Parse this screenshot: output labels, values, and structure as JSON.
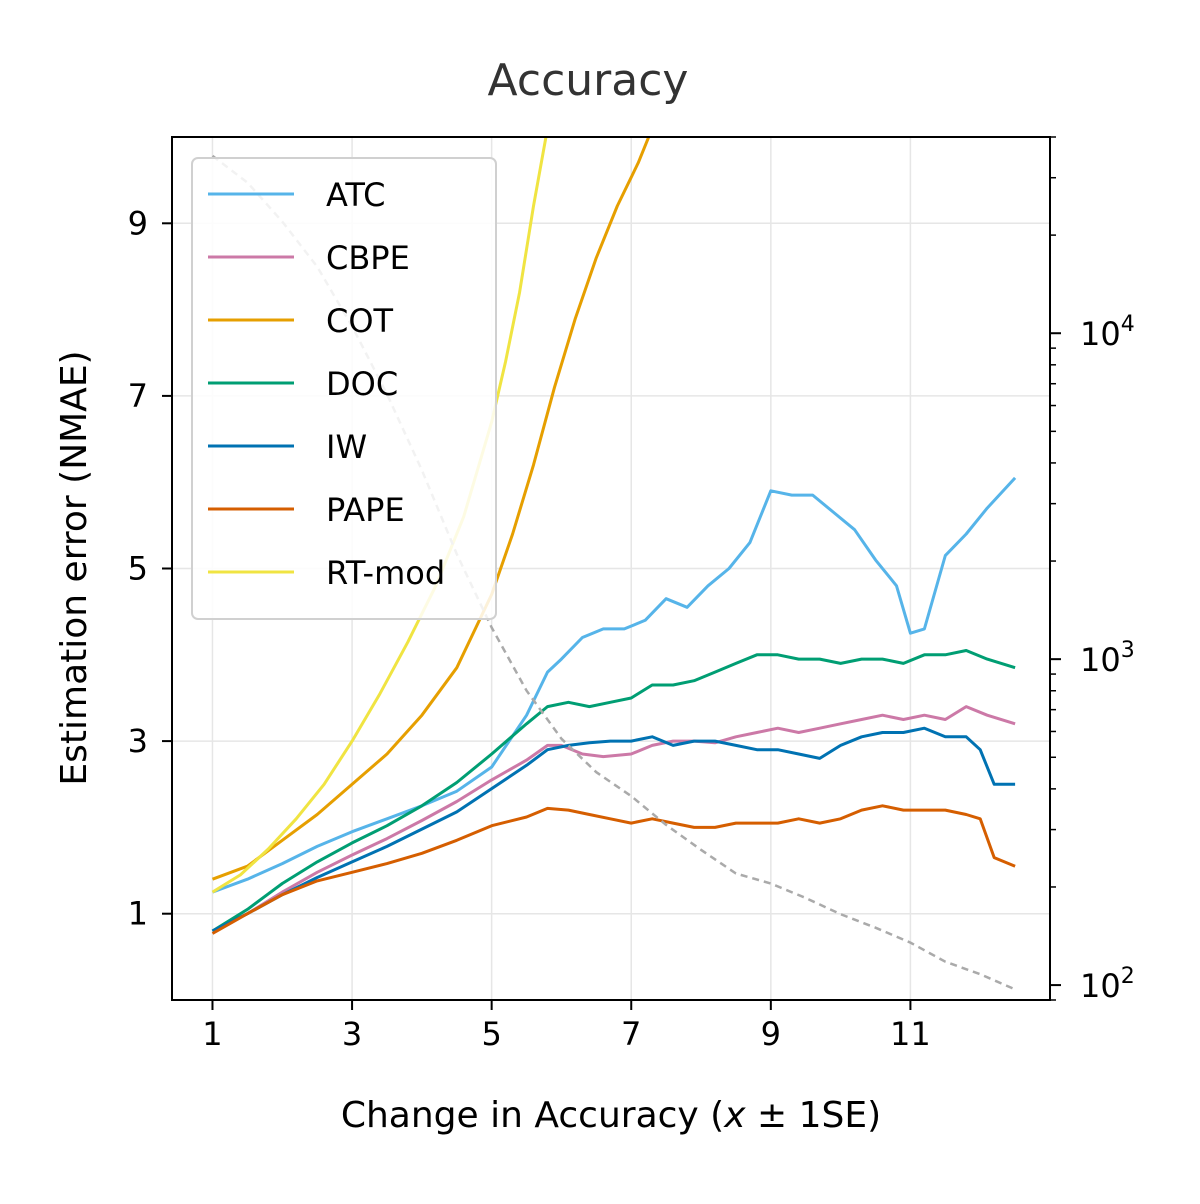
{
  "chart_data": {
    "type": "line",
    "title": "Accuracy",
    "xlabel_main": "Change in Accuracy (",
    "xlabel_math": "x",
    "xlabel_tail": " ± 1SE)",
    "ylabel": "Estimation error (NMAE)",
    "xlim": [
      0.42,
      13.0
    ],
    "ylim": [
      0.0,
      10.0
    ],
    "y2lim": [
      90,
      40000
    ],
    "y2scale": "log",
    "xticks": [
      1,
      3,
      5,
      7,
      9,
      11
    ],
    "xtick_labels": [
      "1",
      "3",
      "5",
      "7",
      "9",
      "11"
    ],
    "yticks": [
      1,
      3,
      5,
      7,
      9
    ],
    "ytick_labels": [
      "1",
      "3",
      "5",
      "7",
      "9"
    ],
    "y2ticks": [
      100,
      1000,
      10000
    ],
    "y2tick_labels": [
      {
        "base": "10",
        "exp": "2"
      },
      {
        "base": "10",
        "exp": "3"
      },
      {
        "base": "10",
        "exp": "4"
      }
    ],
    "grid": true,
    "legend_position": "upper-left",
    "series": [
      {
        "name": "ATC",
        "color": "#56b4e9",
        "x": [
          1,
          1.5,
          2,
          2.5,
          3,
          3.5,
          4,
          4.5,
          5,
          5.5,
          5.8,
          6,
          6.3,
          6.6,
          6.9,
          7.2,
          7.5,
          7.8,
          8.1,
          8.4,
          8.7,
          9,
          9.3,
          9.6,
          9.9,
          10.2,
          10.5,
          10.8,
          11,
          11.2,
          11.5,
          11.8,
          12.1,
          12.5
        ],
        "y": [
          1.25,
          1.4,
          1.58,
          1.78,
          1.95,
          2.1,
          2.25,
          2.42,
          2.7,
          3.3,
          3.8,
          3.95,
          4.2,
          4.3,
          4.3,
          4.4,
          4.65,
          4.55,
          4.8,
          5.0,
          5.3,
          5.9,
          5.85,
          5.85,
          5.65,
          5.45,
          5.1,
          4.8,
          4.25,
          4.3,
          5.15,
          5.4,
          5.7,
          6.05
        ]
      },
      {
        "name": "CBPE",
        "color": "#cc79a7",
        "x": [
          1,
          1.5,
          2,
          2.5,
          3,
          3.5,
          4,
          4.5,
          5,
          5.5,
          5.8,
          6,
          6.3,
          6.6,
          7,
          7.3,
          7.6,
          7.9,
          8.2,
          8.5,
          8.8,
          9.1,
          9.4,
          9.7,
          10,
          10.3,
          10.6,
          10.9,
          11.2,
          11.5,
          11.8,
          12.1,
          12.5
        ],
        "y": [
          0.8,
          1.0,
          1.25,
          1.48,
          1.68,
          1.87,
          2.08,
          2.3,
          2.55,
          2.78,
          2.95,
          2.95,
          2.85,
          2.82,
          2.85,
          2.95,
          3.0,
          3.0,
          2.98,
          3.05,
          3.1,
          3.15,
          3.1,
          3.15,
          3.2,
          3.25,
          3.3,
          3.25,
          3.3,
          3.25,
          3.4,
          3.3,
          3.2
        ]
      },
      {
        "name": "COT",
        "color": "#e69f00",
        "x": [
          1,
          1.5,
          2,
          2.5,
          3,
          3.5,
          4,
          4.5,
          5,
          5.3,
          5.6,
          5.9,
          6.2,
          6.5,
          6.8,
          7.1,
          7.4
        ],
        "y": [
          1.4,
          1.55,
          1.85,
          2.15,
          2.5,
          2.85,
          3.3,
          3.85,
          4.7,
          5.4,
          6.2,
          7.1,
          7.9,
          8.6,
          9.2,
          9.7,
          10.3
        ]
      },
      {
        "name": "DOC",
        "color": "#009e73",
        "x": [
          1,
          1.5,
          2,
          2.5,
          3,
          3.5,
          4,
          4.5,
          5,
          5.5,
          5.8,
          6.1,
          6.4,
          6.7,
          7,
          7.3,
          7.6,
          7.9,
          8.2,
          8.5,
          8.8,
          9.1,
          9.4,
          9.7,
          10,
          10.3,
          10.6,
          10.9,
          11.2,
          11.5,
          11.8,
          12.1,
          12.5
        ],
        "y": [
          0.8,
          1.05,
          1.35,
          1.6,
          1.82,
          2.02,
          2.25,
          2.52,
          2.85,
          3.2,
          3.4,
          3.45,
          3.4,
          3.45,
          3.5,
          3.65,
          3.65,
          3.7,
          3.8,
          3.9,
          4.0,
          4.0,
          3.95,
          3.95,
          3.9,
          3.95,
          3.95,
          3.9,
          4.0,
          4.0,
          4.05,
          3.95,
          3.85
        ]
      },
      {
        "name": "IW",
        "color": "#0072b2",
        "x": [
          1,
          1.5,
          2,
          2.5,
          3,
          3.5,
          4,
          4.5,
          5,
          5.5,
          5.8,
          6.1,
          6.4,
          6.7,
          7,
          7.3,
          7.6,
          7.9,
          8.2,
          8.5,
          8.8,
          9.1,
          9.4,
          9.7,
          10,
          10.3,
          10.6,
          10.9,
          11.2,
          11.5,
          11.8,
          12,
          12.2,
          12.5
        ],
        "y": [
          0.8,
          1.0,
          1.22,
          1.42,
          1.6,
          1.78,
          1.98,
          2.18,
          2.45,
          2.72,
          2.9,
          2.95,
          2.98,
          3.0,
          3.0,
          3.05,
          2.95,
          3.0,
          3.0,
          2.95,
          2.9,
          2.9,
          2.85,
          2.8,
          2.95,
          3.05,
          3.1,
          3.1,
          3.15,
          3.05,
          3.05,
          2.9,
          2.5,
          2.5
        ]
      },
      {
        "name": "PAPE",
        "color": "#d55e00",
        "x": [
          1,
          1.5,
          2,
          2.5,
          3,
          3.5,
          4,
          4.5,
          5,
          5.5,
          5.8,
          6.1,
          6.4,
          6.7,
          7,
          7.3,
          7.6,
          7.9,
          8.2,
          8.5,
          8.8,
          9.1,
          9.4,
          9.7,
          10,
          10.3,
          10.6,
          10.9,
          11.2,
          11.5,
          11.8,
          12,
          12.2,
          12.5
        ],
        "y": [
          0.77,
          1.0,
          1.22,
          1.38,
          1.48,
          1.58,
          1.7,
          1.85,
          2.02,
          2.12,
          2.22,
          2.2,
          2.15,
          2.1,
          2.05,
          2.1,
          2.05,
          2.0,
          2.0,
          2.05,
          2.05,
          2.05,
          2.1,
          2.05,
          2.1,
          2.2,
          2.25,
          2.2,
          2.2,
          2.2,
          2.15,
          2.1,
          1.65,
          1.55
        ]
      },
      {
        "name": "RT-mod",
        "color": "#f0e442",
        "x": [
          1,
          1.4,
          1.8,
          2.2,
          2.6,
          3,
          3.4,
          3.8,
          4.2,
          4.6,
          5,
          5.2,
          5.4,
          5.6,
          5.8
        ],
        "y": [
          1.25,
          1.45,
          1.75,
          2.1,
          2.5,
          3.0,
          3.55,
          4.15,
          4.8,
          5.6,
          6.7,
          7.4,
          8.2,
          9.2,
          10.1
        ]
      },
      {
        "color": "#aaaaaa",
        "axis": "right",
        "dashed": true,
        "x": [
          1,
          1.5,
          2,
          2.5,
          3,
          3.5,
          4,
          4.5,
          5,
          5.5,
          6,
          6.5,
          7,
          7.5,
          8,
          8.5,
          9,
          9.5,
          10,
          10.5,
          11,
          11.5,
          12,
          12.5
        ],
        "y": [
          35000,
          29000,
          22000,
          16000,
          10500,
          6500,
          3800,
          2100,
          1250,
          800,
          570,
          450,
          380,
          310,
          260,
          220,
          205,
          185,
          165,
          150,
          135,
          118,
          108,
          97
        ]
      }
    ]
  }
}
